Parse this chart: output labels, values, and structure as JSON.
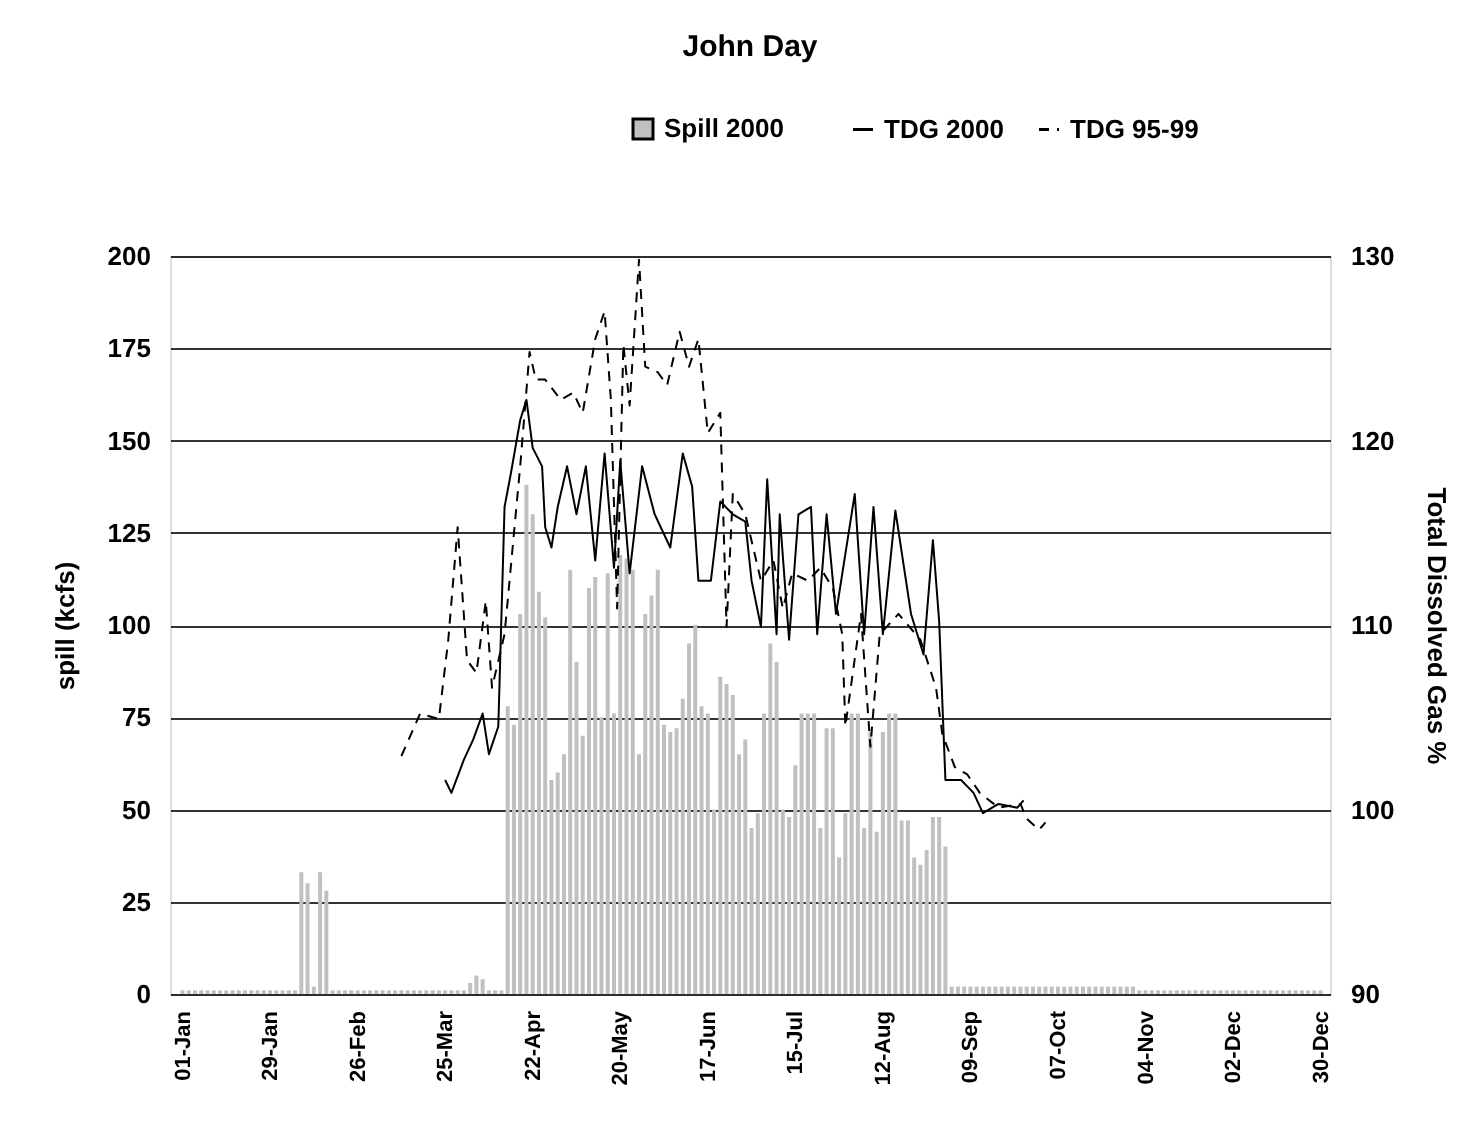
{
  "chart_data": {
    "type": "bar",
    "title": "John Day",
    "ylabel": "spill (kcfs)",
    "y2label": "Total Dissolved Gas %",
    "xlim": [
      "1999-12-28",
      "2001-01-02"
    ],
    "xticks": [
      {
        "value": "2000-01-01",
        "label": "01-Jan"
      },
      {
        "value": "2000-01-29",
        "label": "29-Jan"
      },
      {
        "value": "2000-02-26",
        "label": "26-Feb"
      },
      {
        "value": "2000-03-25",
        "label": "25-Mar"
      },
      {
        "value": "2000-04-22",
        "label": "22-Apr"
      },
      {
        "value": "2000-05-20",
        "label": "20-May"
      },
      {
        "value": "2000-06-17",
        "label": "17-Jun"
      },
      {
        "value": "2000-07-15",
        "label": "15-Jul"
      },
      {
        "value": "2000-08-12",
        "label": "12-Aug"
      },
      {
        "value": "2000-09-09",
        "label": "09-Sep"
      },
      {
        "value": "2000-10-07",
        "label": "07-Oct"
      },
      {
        "value": "2000-11-04",
        "label": "04-Nov"
      },
      {
        "value": "2000-12-02",
        "label": "02-Dec"
      },
      {
        "value": "2000-12-30",
        "label": "30-Dec"
      }
    ],
    "ylim": [
      0,
      200
    ],
    "yticks": [
      0,
      25,
      50,
      75,
      100,
      125,
      150,
      175,
      200
    ],
    "y2lim": [
      90,
      130
    ],
    "y2ticks": [
      90,
      100,
      110,
      120,
      130
    ],
    "grid": "y",
    "legend": "top right",
    "series": [
      {
        "name": "Spill 2000",
        "color": "#c0c0c0",
        "x": [
          "2000-01-01",
          "2000-01-03",
          "2000-01-05",
          "2000-01-07",
          "2000-01-09",
          "2000-01-11",
          "2000-01-13",
          "2000-01-15",
          "2000-01-17",
          "2000-01-19",
          "2000-01-21",
          "2000-01-23",
          "2000-01-25",
          "2000-01-27",
          "2000-01-29",
          "2000-01-31",
          "2000-02-02",
          "2000-02-04",
          "2000-02-06",
          "2000-02-08",
          "2000-02-10",
          "2000-02-12",
          "2000-02-14",
          "2000-02-16",
          "2000-02-18",
          "2000-02-20",
          "2000-02-22",
          "2000-02-24",
          "2000-02-26",
          "2000-02-28",
          "2000-03-01",
          "2000-03-03",
          "2000-03-05",
          "2000-03-07",
          "2000-03-09",
          "2000-03-11",
          "2000-03-13",
          "2000-03-15",
          "2000-03-17",
          "2000-03-19",
          "2000-03-21",
          "2000-03-23",
          "2000-03-25",
          "2000-03-27",
          "2000-03-29",
          "2000-03-31",
          "2000-04-02",
          "2000-04-04",
          "2000-04-06",
          "2000-04-08",
          "2000-04-10",
          "2000-04-12",
          "2000-04-14",
          "2000-04-16",
          "2000-04-18",
          "2000-04-20",
          "2000-04-22",
          "2000-04-24",
          "2000-04-26",
          "2000-04-28",
          "2000-04-30",
          "2000-05-02",
          "2000-05-04",
          "2000-05-06",
          "2000-05-08",
          "2000-05-10",
          "2000-05-12",
          "2000-05-14",
          "2000-05-16",
          "2000-05-18",
          "2000-05-20",
          "2000-05-22",
          "2000-05-24",
          "2000-05-26",
          "2000-05-28",
          "2000-05-30",
          "2000-06-01",
          "2000-06-03",
          "2000-06-05",
          "2000-06-07",
          "2000-06-09",
          "2000-06-11",
          "2000-06-13",
          "2000-06-15",
          "2000-06-17",
          "2000-06-19",
          "2000-06-21",
          "2000-06-23",
          "2000-06-25",
          "2000-06-27",
          "2000-06-29",
          "2000-07-01",
          "2000-07-03",
          "2000-07-05",
          "2000-07-07",
          "2000-07-09",
          "2000-07-11",
          "2000-07-13",
          "2000-07-15",
          "2000-07-17",
          "2000-07-19",
          "2000-07-21",
          "2000-07-23",
          "2000-07-25",
          "2000-07-27",
          "2000-07-29",
          "2000-07-31",
          "2000-08-02",
          "2000-08-04",
          "2000-08-06",
          "2000-08-08",
          "2000-08-10",
          "2000-08-12",
          "2000-08-14",
          "2000-08-16",
          "2000-08-18",
          "2000-08-20",
          "2000-08-22",
          "2000-08-24",
          "2000-08-26",
          "2000-08-28",
          "2000-08-30",
          "2000-09-01",
          "2000-09-03",
          "2000-09-05",
          "2000-09-07",
          "2000-09-09",
          "2000-09-11",
          "2000-09-13",
          "2000-09-15",
          "2000-09-17",
          "2000-09-19",
          "2000-09-21",
          "2000-09-23",
          "2000-09-25",
          "2000-09-27",
          "2000-09-29",
          "2000-10-01",
          "2000-10-03",
          "2000-10-05",
          "2000-10-07",
          "2000-10-09",
          "2000-10-11",
          "2000-10-13",
          "2000-10-15",
          "2000-10-17",
          "2000-10-19",
          "2000-10-21",
          "2000-10-23",
          "2000-10-25",
          "2000-10-27",
          "2000-10-29",
          "2000-10-31",
          "2000-11-02",
          "2000-11-04",
          "2000-11-06",
          "2000-11-08",
          "2000-11-10",
          "2000-11-12",
          "2000-11-14",
          "2000-11-16",
          "2000-11-18",
          "2000-11-20",
          "2000-11-22",
          "2000-11-24",
          "2000-11-26",
          "2000-11-28",
          "2000-11-30",
          "2000-12-02",
          "2000-12-04",
          "2000-12-06",
          "2000-12-08",
          "2000-12-10",
          "2000-12-12",
          "2000-12-14",
          "2000-12-16",
          "2000-12-18",
          "2000-12-20",
          "2000-12-22",
          "2000-12-24",
          "2000-12-26",
          "2000-12-28",
          "2000-12-30"
        ],
        "values": [
          1,
          1,
          1,
          1,
          1,
          1,
          1,
          1,
          1,
          1,
          1,
          1,
          1,
          1,
          1,
          1,
          1,
          1,
          1,
          33,
          30,
          2,
          33,
          28,
          1,
          1,
          1,
          1,
          1,
          1,
          1,
          1,
          1,
          1,
          1,
          1,
          1,
          1,
          1,
          1,
          1,
          1,
          1,
          1,
          1,
          1,
          3,
          5,
          4,
          1,
          1,
          1,
          78,
          73,
          103,
          138,
          130,
          109,
          102,
          58,
          60,
          65,
          115,
          90,
          70,
          110,
          113,
          75,
          114,
          76,
          119,
          118,
          115,
          65,
          103,
          108,
          115,
          73,
          71,
          72,
          80,
          95,
          100,
          78,
          76,
          50,
          86,
          84,
          81,
          65,
          69,
          45,
          49,
          76,
          95,
          90,
          50,
          48,
          62,
          76,
          76,
          76,
          45,
          72,
          72,
          37,
          49,
          76,
          76,
          45,
          71,
          44,
          71,
          76,
          76,
          47,
          47,
          37,
          35,
          39,
          48,
          48,
          40,
          2,
          2,
          2,
          2,
          2,
          2,
          2,
          2,
          2,
          2,
          2,
          2,
          2,
          2,
          2,
          2,
          2,
          2,
          2,
          2,
          2,
          2,
          2,
          2,
          2,
          2,
          2,
          2,
          2,
          2,
          1,
          1,
          1,
          1,
          1,
          1,
          1,
          1,
          1,
          1,
          1,
          1,
          1,
          1,
          1,
          1,
          1,
          1,
          1,
          1,
          1,
          1,
          1,
          1,
          1,
          1,
          1,
          1,
          1,
          1
        ]
      },
      {
        "name": "TDG 2000",
        "type": "line",
        "axis": "y2",
        "color": "#000000",
        "line_style": "solid",
        "x": [
          "2000-03-25",
          "2000-03-27",
          "2000-03-31",
          "2000-04-03",
          "2000-04-06",
          "2000-04-08",
          "2000-04-11",
          "2000-04-13",
          "2000-04-15",
          "2000-04-18",
          "2000-04-20",
          "2000-04-22",
          "2000-04-25",
          "2000-04-26",
          "2000-04-28",
          "2000-04-30",
          "2000-05-03",
          "2000-05-06",
          "2000-05-09",
          "2000-05-12",
          "2000-05-15",
          "2000-05-18",
          "2000-05-20",
          "2000-05-23",
          "2000-05-27",
          "2000-05-31",
          "2000-06-05",
          "2000-06-09",
          "2000-06-12",
          "2000-06-14",
          "2000-06-18",
          "2000-06-21",
          "2000-06-25",
          "2000-06-29",
          "2000-07-01",
          "2000-07-04",
          "2000-07-06",
          "2000-07-09",
          "2000-07-10",
          "2000-07-13",
          "2000-07-16",
          "2000-07-20",
          "2000-07-22",
          "2000-07-25",
          "2000-07-28",
          "2000-08-03",
          "2000-08-06",
          "2000-08-09",
          "2000-08-12",
          "2000-08-16",
          "2000-08-21",
          "2000-08-25",
          "2000-08-28",
          "2000-08-30",
          "2000-09-01",
          "2000-09-06",
          "2000-09-10",
          "2000-09-13",
          "2000-09-18",
          "2000-09-24",
          "2000-09-26"
        ],
        "values": [
          101.6,
          100.9,
          102.7,
          103.8,
          105.2,
          103.0,
          104.5,
          116.4,
          118.2,
          121.1,
          122.2,
          119.6,
          118.6,
          115.3,
          114.2,
          116.4,
          118.6,
          116.0,
          118.6,
          113.5,
          119.3,
          113.1,
          118.9,
          112.8,
          118.6,
          116.0,
          114.2,
          119.3,
          117.5,
          112.4,
          112.4,
          116.7,
          116.0,
          115.6,
          112.4,
          109.9,
          117.9,
          109.5,
          116.0,
          109.2,
          116.0,
          116.4,
          109.5,
          116.0,
          110.6,
          117.1,
          109.5,
          116.4,
          109.5,
          116.2,
          110.6,
          108.4,
          114.6,
          110.2,
          101.6,
          101.6,
          100.9,
          99.8,
          100.3,
          100.1,
          100.5
        ]
      },
      {
        "name": "TDG 95-99",
        "type": "line",
        "axis": "y2",
        "color": "#000000",
        "line_style": "dashed",
        "x": [
          "2000-03-11",
          "2000-03-17",
          "2000-03-23",
          "2000-03-26",
          "2000-03-29",
          "2000-04-01",
          "2000-04-04",
          "2000-04-07",
          "2000-04-09",
          "2000-04-13",
          "2000-04-18",
          "2000-04-21",
          "2000-04-23",
          "2000-04-26",
          "2000-05-01",
          "2000-05-05",
          "2000-05-08",
          "2000-05-12",
          "2000-05-15",
          "2000-05-17",
          "2000-05-19",
          "2000-05-21",
          "2000-05-23",
          "2000-05-26",
          "2000-05-28",
          "2000-06-01",
          "2000-06-04",
          "2000-06-08",
          "2000-06-11",
          "2000-06-14",
          "2000-06-17",
          "2000-06-21",
          "2000-06-23",
          "2000-06-25",
          "2000-06-29",
          "2000-07-04",
          "2000-07-08",
          "2000-07-11",
          "2000-07-14",
          "2000-07-19",
          "2000-07-23",
          "2000-07-27",
          "2000-07-30",
          "2000-07-31",
          "2000-08-05",
          "2000-08-08",
          "2000-08-11",
          "2000-08-17",
          "2000-08-24",
          "2000-08-29",
          "2000-08-31",
          "2000-09-04",
          "2000-09-08",
          "2000-09-12",
          "2000-09-18",
          "2000-09-25",
          "2000-09-27",
          "2000-10-01",
          "2000-10-03"
        ],
        "values": [
          102.9,
          105.2,
          104.9,
          109.2,
          115.3,
          108.1,
          107.4,
          111.3,
          106.6,
          109.5,
          118.6,
          124.8,
          123.3,
          123.3,
          122.2,
          122.6,
          121.5,
          125.5,
          127.0,
          122.2,
          110.9,
          125.2,
          121.9,
          129.8,
          124.0,
          123.7,
          123.0,
          125.9,
          124.0,
          125.5,
          120.4,
          121.5,
          109.9,
          117.1,
          116.0,
          112.4,
          113.5,
          110.9,
          112.8,
          112.4,
          113.1,
          112.0,
          109.5,
          104.5,
          110.6,
          103.4,
          109.5,
          110.6,
          109.2,
          106.6,
          104.1,
          102.3,
          101.9,
          100.9,
          100.1,
          100.3,
          99.5,
          98.9,
          99.3
        ]
      }
    ]
  }
}
